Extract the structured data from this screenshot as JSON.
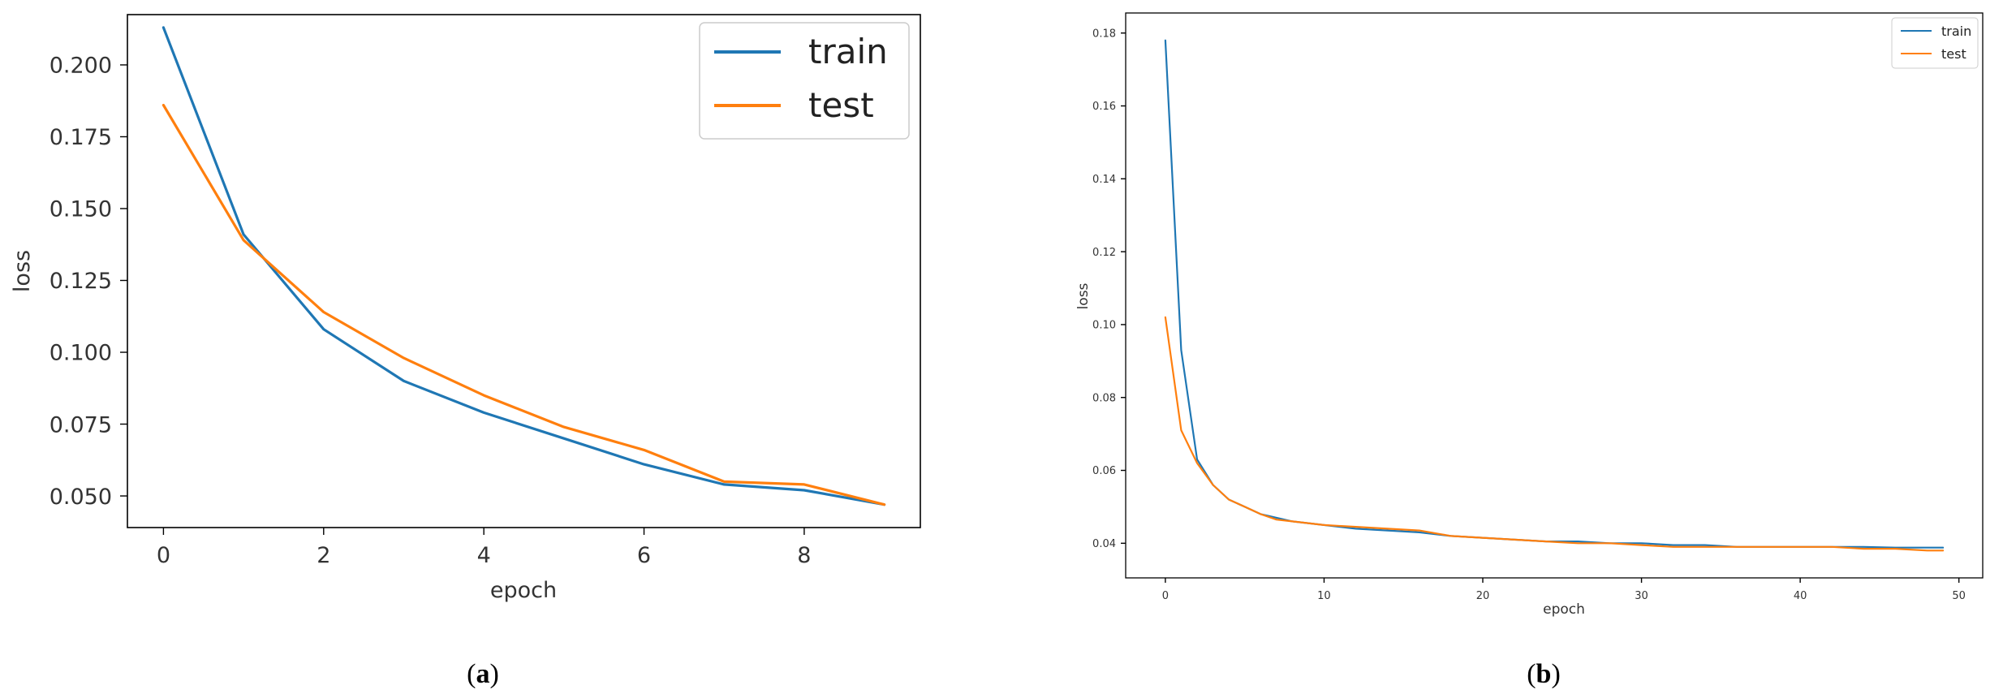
{
  "chart_data": [
    {
      "type": "line",
      "caption_letter": "a",
      "xlabel": "epoch",
      "ylabel": "loss",
      "xlim": [
        -0.45,
        9.45
      ],
      "ylim": [
        0.039,
        0.2175
      ],
      "xticks": [
        0,
        2,
        4,
        6,
        8
      ],
      "yticks": [
        "0.050",
        "0.075",
        "0.100",
        "0.125",
        "0.150",
        "0.175",
        "0.200"
      ],
      "legend_position": "top-right",
      "grid": false,
      "series": [
        {
          "name": "train",
          "color": "#1f77b4",
          "x": [
            0,
            1,
            2,
            3,
            4,
            5,
            6,
            7,
            8,
            9
          ],
          "y": [
            0.213,
            0.141,
            0.108,
            0.09,
            0.079,
            0.07,
            0.061,
            0.054,
            0.052,
            0.047
          ]
        },
        {
          "name": "test",
          "color": "#ff7f0e",
          "x": [
            0,
            1,
            2,
            3,
            4,
            5,
            6,
            7,
            8,
            9
          ],
          "y": [
            0.186,
            0.139,
            0.114,
            0.098,
            0.085,
            0.074,
            0.066,
            0.055,
            0.054,
            0.047
          ]
        }
      ]
    },
    {
      "type": "line",
      "caption_letter": "b",
      "xlabel": "epoch",
      "ylabel": "loss",
      "xlim": [
        -2.5,
        51.5
      ],
      "ylim": [
        0.0305,
        0.1855
      ],
      "xticks": [
        0,
        10,
        20,
        30,
        40,
        50
      ],
      "yticks": [
        "0.04",
        "0.06",
        "0.08",
        "0.10",
        "0.12",
        "0.14",
        "0.16",
        "0.18"
      ],
      "legend_position": "top-right",
      "grid": false,
      "series": [
        {
          "name": "train",
          "color": "#1f77b4",
          "x": [
            0,
            1,
            2,
            3,
            4,
            5,
            6,
            7,
            8,
            9,
            10,
            12,
            14,
            16,
            18,
            20,
            22,
            24,
            26,
            28,
            30,
            32,
            34,
            36,
            38,
            40,
            42,
            44,
            46,
            48,
            49
          ],
          "y": [
            0.178,
            0.093,
            0.063,
            0.056,
            0.052,
            0.05,
            0.048,
            0.047,
            0.046,
            0.0455,
            0.045,
            0.044,
            0.0435,
            0.043,
            0.042,
            0.0415,
            0.041,
            0.0405,
            0.0405,
            0.04,
            0.04,
            0.0395,
            0.0395,
            0.039,
            0.039,
            0.039,
            0.039,
            0.039,
            0.0388,
            0.0388,
            0.0388
          ]
        },
        {
          "name": "test",
          "color": "#ff7f0e",
          "x": [
            0,
            1,
            2,
            3,
            4,
            5,
            6,
            7,
            8,
            9,
            10,
            12,
            14,
            16,
            18,
            20,
            22,
            24,
            26,
            28,
            30,
            32,
            34,
            36,
            38,
            40,
            42,
            44,
            46,
            48,
            49
          ],
          "y": [
            0.102,
            0.071,
            0.062,
            0.056,
            0.052,
            0.05,
            0.048,
            0.0465,
            0.046,
            0.0455,
            0.045,
            0.0445,
            0.044,
            0.0435,
            0.042,
            0.0415,
            0.041,
            0.0405,
            0.04,
            0.04,
            0.0395,
            0.039,
            0.039,
            0.039,
            0.039,
            0.039,
            0.039,
            0.0385,
            0.0385,
            0.038,
            0.038
          ]
        }
      ]
    }
  ]
}
